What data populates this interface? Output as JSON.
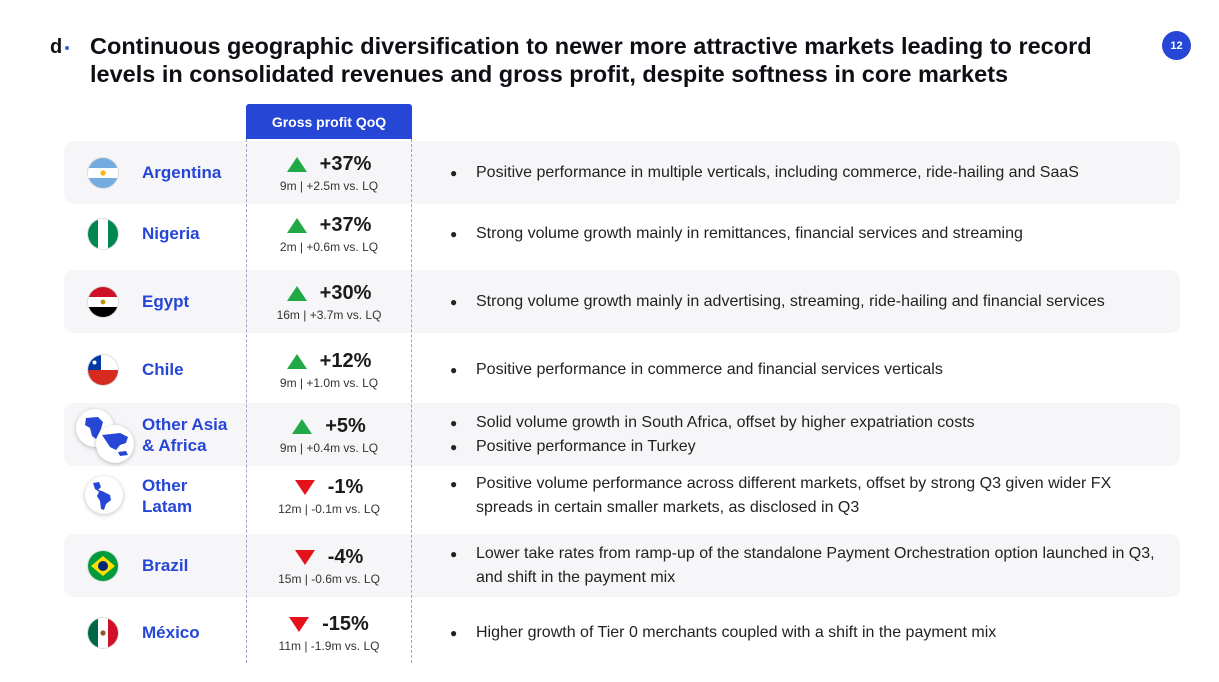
{
  "header": {
    "logo_text": "d",
    "title": "Continuous geographic diversification to newer more attractive markets leading to record levels in consolidated revenues and gross profit, despite softness in core markets",
    "page_number": "12"
  },
  "table": {
    "column_header": "Gross profit QoQ",
    "rows": [
      {
        "country": "Argentina",
        "direction": "up",
        "change": "+37%",
        "detail": "9m | +2.5m vs. LQ",
        "bullets": [
          "Positive performance in multiple verticals, including commerce, ride-hailing and SaaS"
        ]
      },
      {
        "country": "Nigeria",
        "direction": "up",
        "change": "+37%",
        "detail": "2m | +0.6m vs. LQ",
        "bullets": [
          "Strong volume growth mainly in remittances, financial services and streaming"
        ]
      },
      {
        "country": "Egypt",
        "direction": "up",
        "change": "+30%",
        "detail": "16m | +3.7m vs. LQ",
        "bullets": [
          "Strong volume growth mainly in advertising, streaming, ride-hailing and financial services"
        ]
      },
      {
        "country": "Chile",
        "direction": "up",
        "change": "+12%",
        "detail": "9m | +1.0m vs. LQ",
        "bullets": [
          "Positive performance in commerce and financial services verticals"
        ]
      },
      {
        "country_line1": "Other Asia",
        "country_line2": "& Africa",
        "direction": "up",
        "change": "+5%",
        "detail": "9m | +0.4m vs. LQ",
        "bullets": [
          "Solid volume growth in South Africa, offset by higher expatriation costs",
          "Positive performance in Turkey"
        ]
      },
      {
        "country_line1": "Other",
        "country_line2": "Latam",
        "direction": "down",
        "change": "-1%",
        "detail": "12m | -0.1m vs. LQ",
        "bullets": [
          "Positive volume performance across different markets, offset by strong Q3 given wider FX spreads in certain smaller markets, as disclosed in Q3"
        ]
      },
      {
        "country": "Brazil",
        "direction": "down",
        "change": "-4%",
        "detail": "15m | -0.6m vs. LQ",
        "bullets": [
          "Lower take rates from ramp-up of the standalone Payment Orchestration option launched in Q3, and shift in the payment mix"
        ]
      },
      {
        "country": "México",
        "direction": "down",
        "change": "-15%",
        "detail": "11m | -1.9m vs. LQ",
        "bullets": [
          "Higher growth of Tier 0 merchants coupled with a shift in the payment mix"
        ]
      }
    ]
  },
  "colors": {
    "accent": "#2646d6",
    "up": "#22a947",
    "down": "#e5121c",
    "row_shade": "#f6f6f8"
  }
}
